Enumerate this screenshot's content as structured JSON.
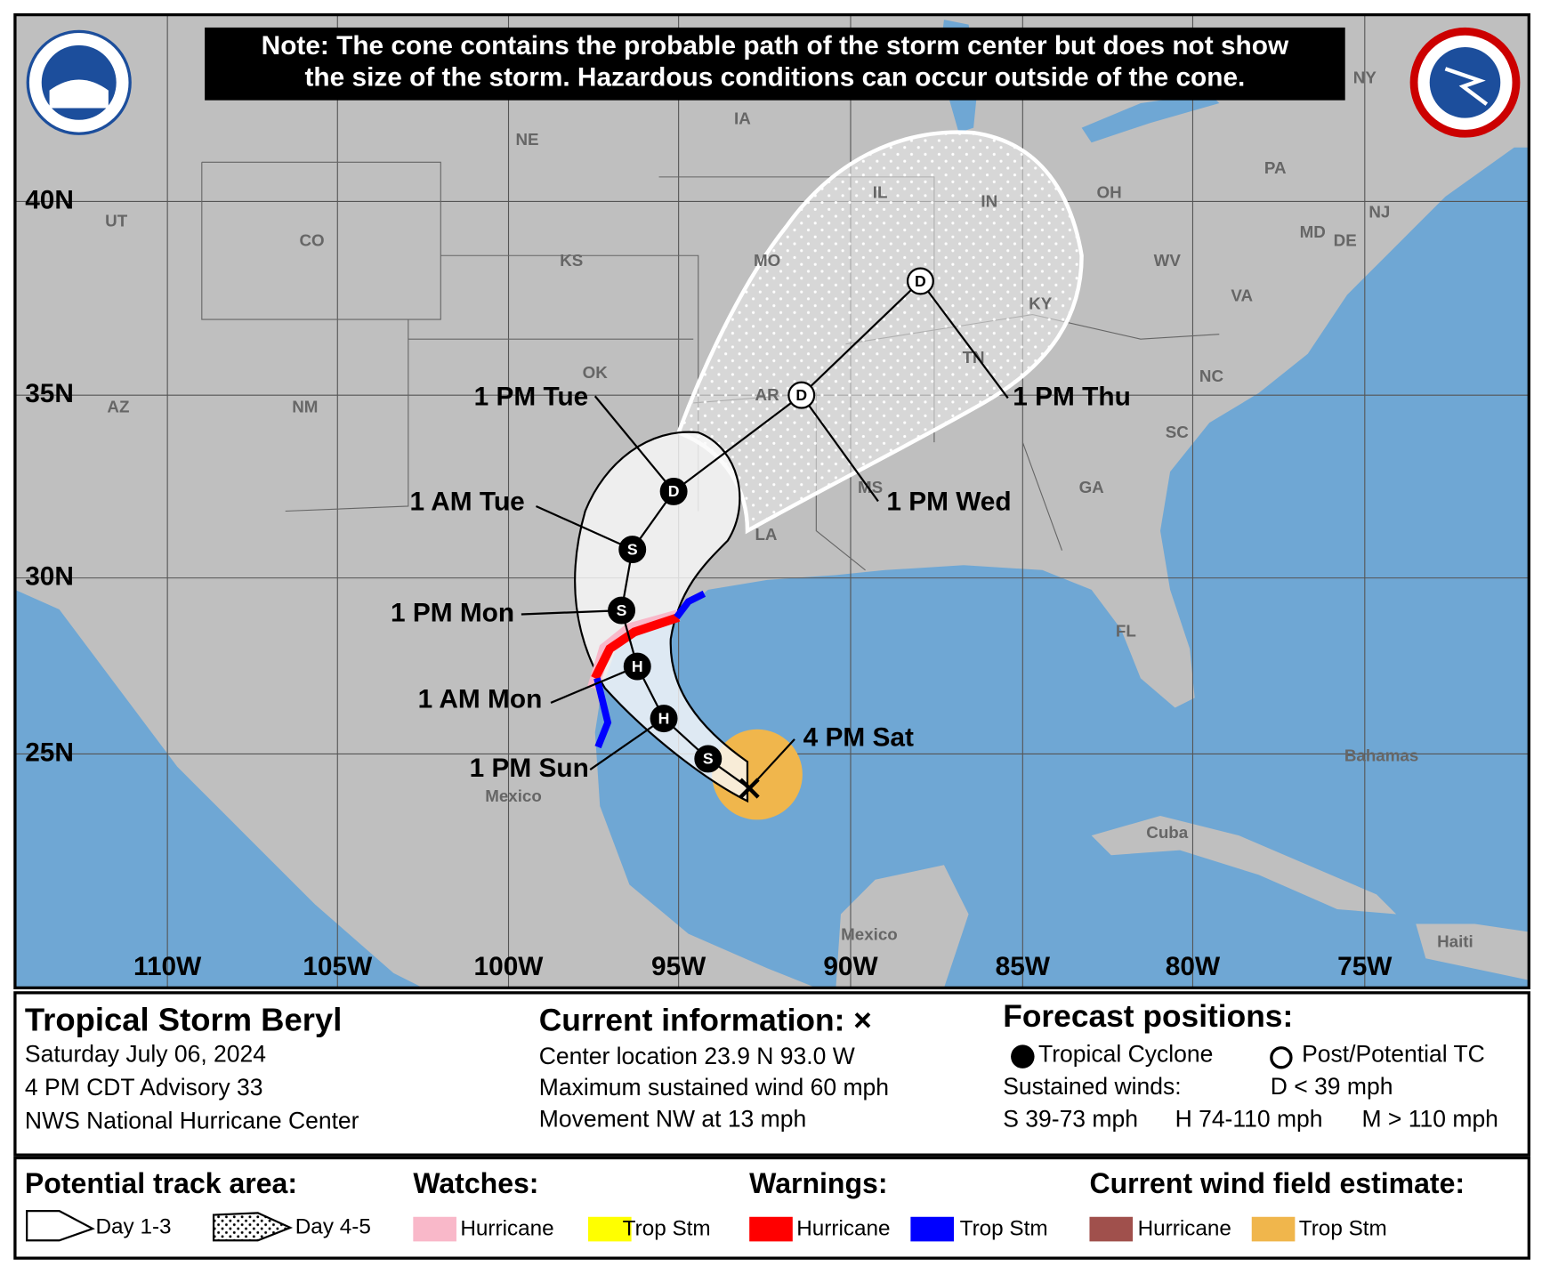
{
  "note": {
    "line1": "Note: The cone contains the probable path of the storm center but does not show",
    "line2": "the size of the storm. Hazardous conditions can occur outside of the cone."
  },
  "map": {
    "latitudes": [
      "40N",
      "35N",
      "30N",
      "25N"
    ],
    "longitudes": [
      "110W",
      "105W",
      "100W",
      "95W",
      "90W",
      "85W",
      "80W",
      "75W"
    ],
    "regions": [
      "UT",
      "CO",
      "NE",
      "IA",
      "KS",
      "MO",
      "IL",
      "IN",
      "OH",
      "PA",
      "NY",
      "WV",
      "VA",
      "KY",
      "TN",
      "NC",
      "SC",
      "GA",
      "MS",
      "AR",
      "LA",
      "OK",
      "NM",
      "AZ",
      "FL",
      "MD",
      "DE",
      "NJ",
      "Bahamas",
      "Cuba",
      "Mexico",
      "Mexico",
      "Haiti"
    ],
    "current_position": {
      "label": "4 PM Sat"
    },
    "forecast_points": [
      {
        "symbol": "S",
        "filled": true
      },
      {
        "symbol": "H",
        "filled": true,
        "label": "1 PM Sun"
      },
      {
        "symbol": "H",
        "filled": true,
        "label": "1 AM Mon"
      },
      {
        "symbol": "S",
        "filled": true,
        "label": "1 PM Mon"
      },
      {
        "symbol": "S",
        "filled": true,
        "label": "1 AM Tue"
      },
      {
        "symbol": "D",
        "filled": true,
        "label": "1 PM Tue"
      },
      {
        "symbol": "D",
        "filled": false,
        "label": "1 PM Wed"
      },
      {
        "symbol": "D",
        "filled": false,
        "label": "1 PM Thu"
      }
    ]
  },
  "storm": {
    "name": "Tropical Storm Beryl",
    "date": "Saturday July 06, 2024",
    "advisory": "4 PM CDT Advisory 33",
    "center": "NWS National Hurricane Center"
  },
  "current": {
    "title": "Current information: ×",
    "lines": [
      "Center location 23.9 N 93.0 W",
      "Maximum sustained wind 60 mph",
      "Movement NW at 13 mph"
    ]
  },
  "forecast": {
    "title": "Forecast positions:",
    "filled_label": "Tropical Cyclone",
    "open_label": "Post/Potential TC",
    "winds_title": "Sustained winds:",
    "d": "D < 39 mph",
    "s": "S 39-73 mph",
    "h": "H 74-110 mph",
    "m": "M > 110 mph"
  },
  "legend": {
    "track_title": "Potential track area:",
    "day13": "Day 1-3",
    "day45": "Day 4-5",
    "watches_title": "Watches:",
    "watches": [
      {
        "name": "Hurricane",
        "color": "#f9b8c9"
      },
      {
        "name": "Trop Stm",
        "color": "#ffff00"
      }
    ],
    "warnings_title": "Warnings:",
    "warnings": [
      {
        "name": "Hurricane",
        "color": "#ff0000"
      },
      {
        "name": "Trop Stm",
        "color": "#0000ff"
      }
    ],
    "wind_title": "Current wind field estimate:",
    "wind": [
      {
        "name": "Hurricane",
        "color": "#a0504c"
      },
      {
        "name": "Trop Stm",
        "color": "#f0b64c"
      }
    ]
  }
}
